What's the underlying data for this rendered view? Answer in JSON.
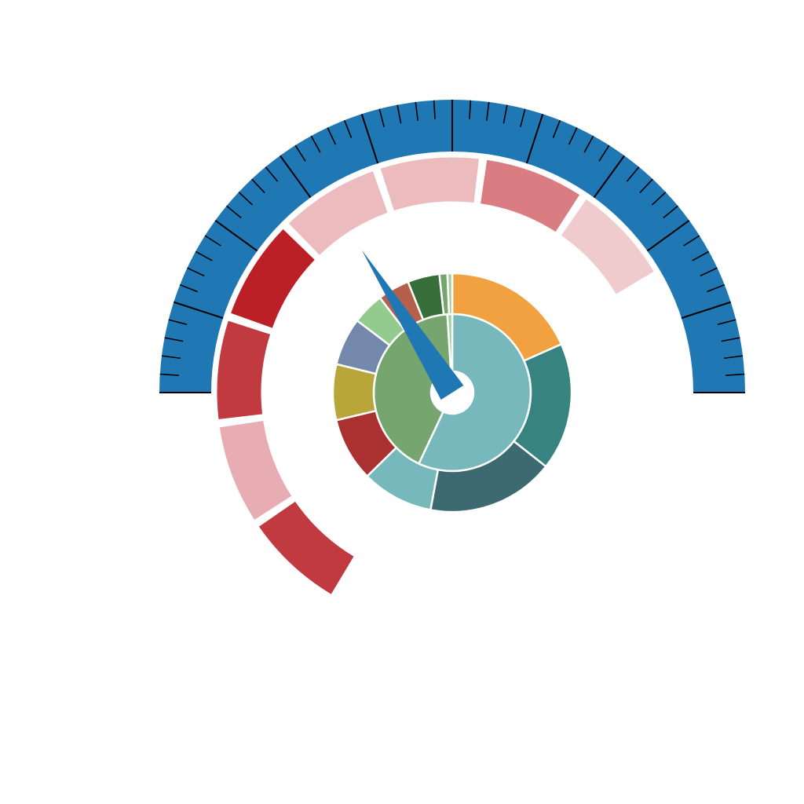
{
  "chart_data": [
    {
      "type": "gauge",
      "title": "",
      "scale": {
        "min": 0,
        "max": 100,
        "major_ticks": 10,
        "minor_per_major": 5
      },
      "pointer_value": 32,
      "colors": {
        "dial": "#1f78b4",
        "tick": "#000000",
        "pointer": "#1f78b4"
      }
    },
    {
      "type": "bar",
      "subtype": "polar-band",
      "title": "",
      "segments": [
        {
          "value": 11,
          "color": "#c13a3f"
        },
        {
          "value": 11,
          "color": "#e8adb2"
        },
        {
          "value": 11,
          "color": "#c13a3f"
        },
        {
          "value": 11,
          "color": "#bb2027"
        },
        {
          "value": 11,
          "color": "#ebbbbe"
        },
        {
          "value": 11,
          "color": "#ebbbbe"
        },
        {
          "value": 11,
          "color": "#d97d83"
        },
        {
          "value": 11,
          "color": "#f0cbce"
        }
      ]
    },
    {
      "type": "pie",
      "subtype": "sunburst",
      "title": "",
      "inner": [
        {
          "value": 57,
          "color": "#76b8bb"
        },
        {
          "value": 42,
          "color": "#76a56f"
        },
        {
          "value": 1,
          "color": "#9fcf9a"
        }
      ],
      "outer": [
        {
          "value": 17,
          "color": "#f2a141"
        },
        {
          "value": 16,
          "color": "#36837f"
        },
        {
          "value": 16,
          "color": "#3d6a70"
        },
        {
          "value": 9,
          "color": "#76b8bb"
        },
        {
          "value": 8,
          "color": "#aa3130"
        },
        {
          "value": 7,
          "color": "#b8a63a"
        },
        {
          "value": 6,
          "color": "#7388aa"
        },
        {
          "value": 4,
          "color": "#93cb8e"
        },
        {
          "value": 4,
          "color": "#b4604a"
        },
        {
          "value": 4,
          "color": "#376e3a"
        },
        {
          "value": 1,
          "color": "#76a56f"
        },
        {
          "value": 0.6,
          "color": "#9fcf9a"
        }
      ]
    }
  ]
}
